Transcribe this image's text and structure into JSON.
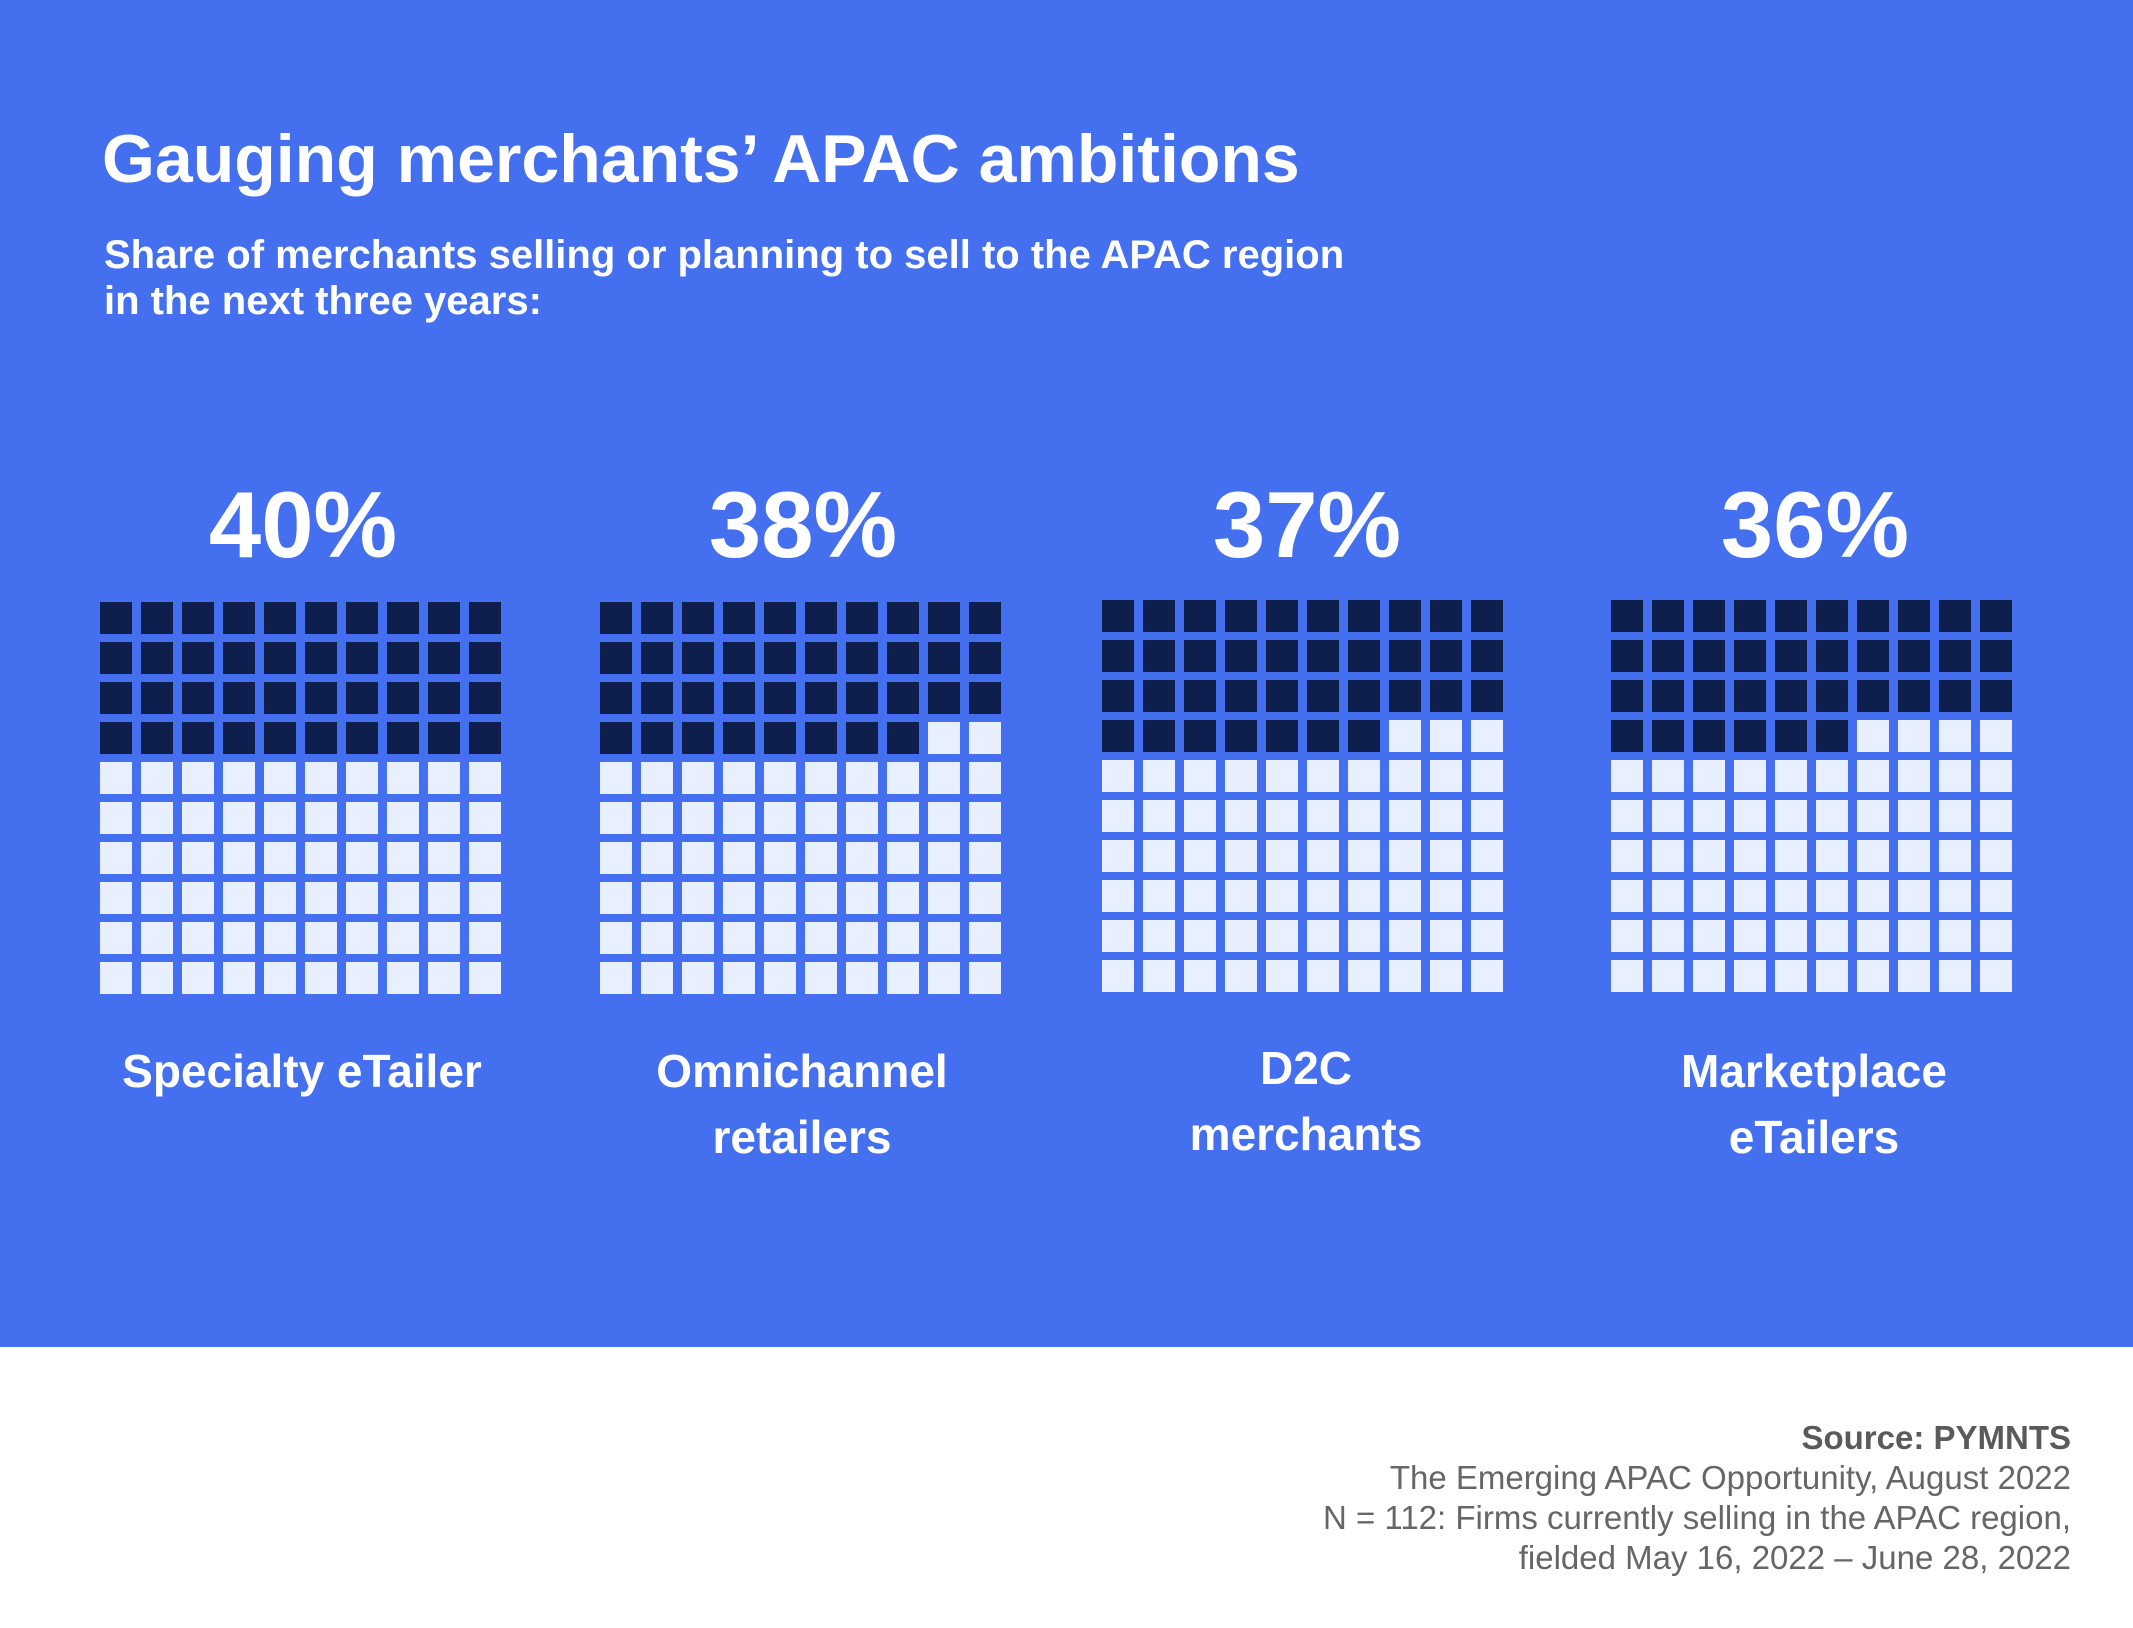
{
  "title": "Gauging merchants’ APAC ambitions",
  "subtitle_line1": "Share of merchants selling or planning to sell to the APAC region",
  "subtitle_line2": "in the next three years:",
  "colors": {
    "background": "#4470EF",
    "filled_cell": "#0E1E4D",
    "empty_cell": "#E8EFFF",
    "footer_background": "#FFFFFF",
    "source_text": "#666666"
  },
  "chart_data": {
    "type": "waffle",
    "title": "Gauging merchants’ APAC ambitions",
    "subtitle": "Share of merchants selling or planning to sell to the APAC region in the next three years:",
    "grid_size": 100,
    "categories": [
      "Specialty eTailer",
      "Omnichannel retailers",
      "D2C merchants",
      "Marketplace eTailers"
    ],
    "values": [
      40,
      38,
      37,
      36
    ],
    "items": [
      {
        "value": 40,
        "value_label": "40%",
        "label_lines": [
          "Specialty eTailer"
        ]
      },
      {
        "value": 38,
        "value_label": "38%",
        "label_lines": [
          "Omnichannel",
          "retailers"
        ]
      },
      {
        "value": 37,
        "value_label": "37%",
        "label_lines": [
          "D2C",
          "merchants"
        ]
      },
      {
        "value": 36,
        "value_label": "36%",
        "label_lines": [
          "Marketplace",
          "eTailers"
        ]
      }
    ]
  },
  "source": {
    "heading": "Source: PYMNTS",
    "line1": "The Emerging APAC Opportunity, August 2022",
    "line2": "N = 112: Firms currently selling in the APAC region,",
    "line3": "fielded May 16, 2022 – June 28, 2022"
  }
}
